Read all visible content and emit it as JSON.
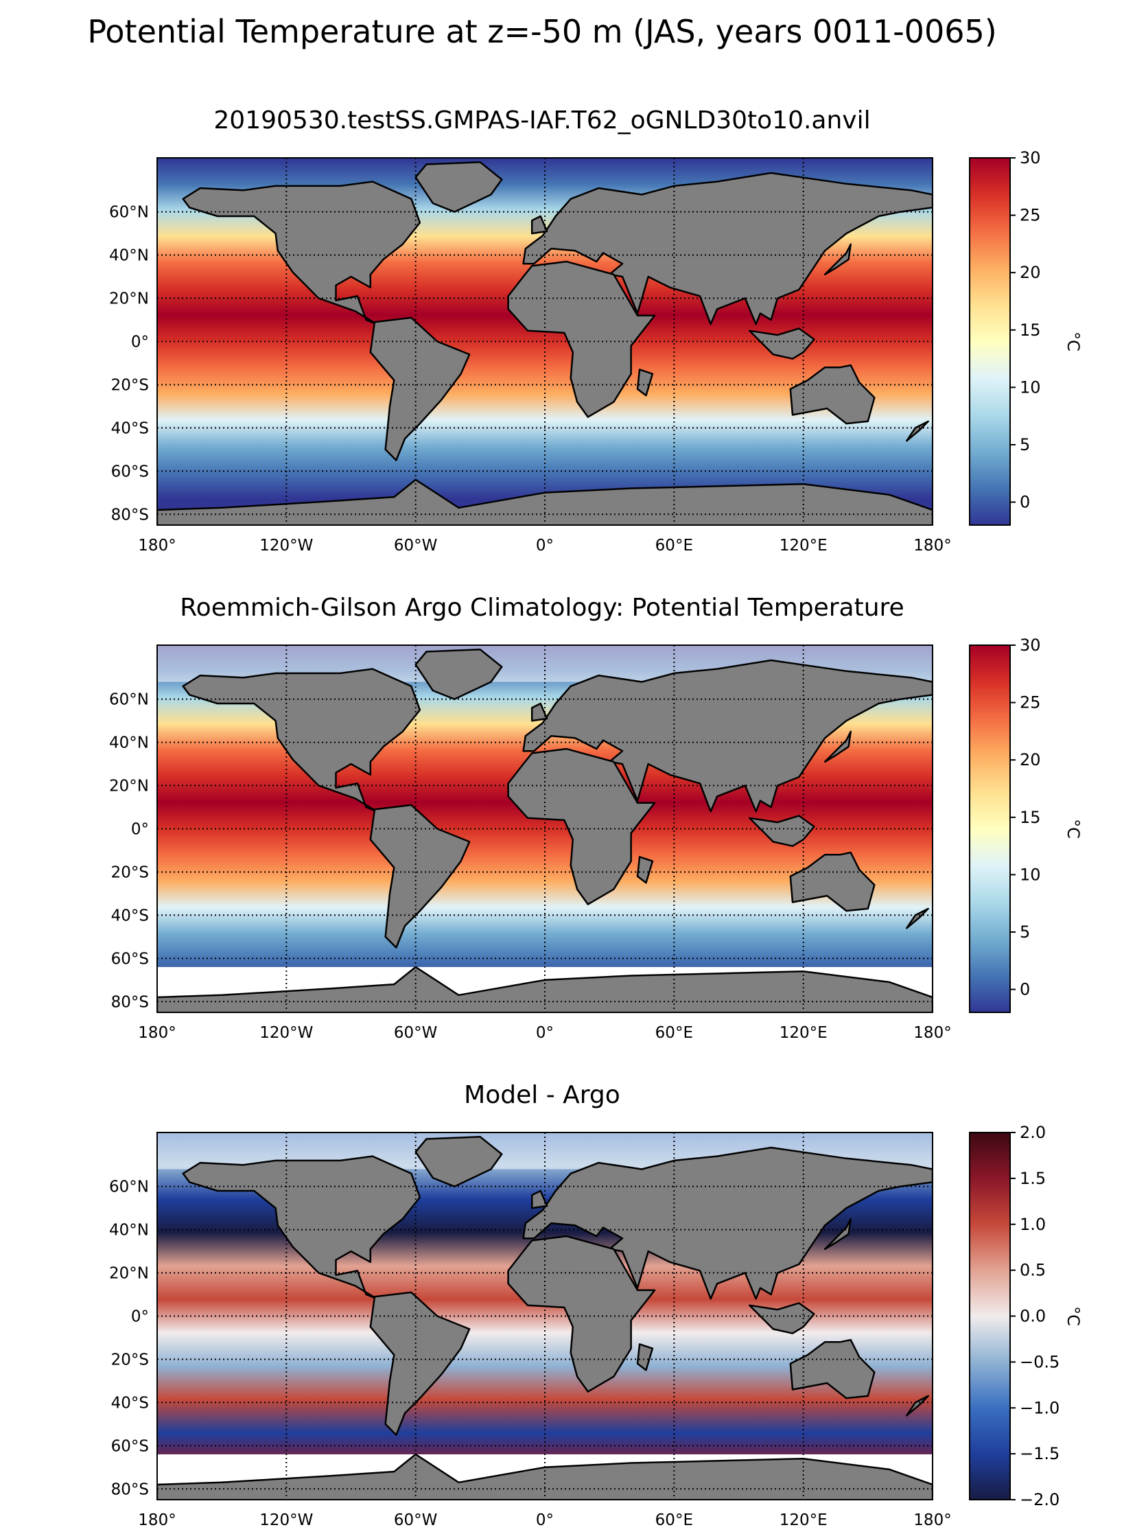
{
  "figure": {
    "title": "Potential Temperature at z=-50 m (JAS, years 0011-0065)"
  },
  "axes": {
    "lon_ticks": [
      "180°",
      "120°W",
      "60°W",
      "0°",
      "60°E",
      "120°E",
      "180°"
    ],
    "lat_ticks": [
      "60°N",
      "40°N",
      "20°N",
      "0°",
      "20°S",
      "40°S",
      "60°S",
      "80°S"
    ]
  },
  "panels": [
    {
      "title": "20190530.testSS.GMPAS-IAF.T62_oGNLD30to10.anvil",
      "colorbar": {
        "label": "°C",
        "ticks": [
          "30",
          "25",
          "20",
          "15",
          "10",
          "5",
          "0"
        ],
        "colormap": "RdYlBu_r",
        "colors": [
          "#313695",
          "#4575b4",
          "#74add1",
          "#abd9e9",
          "#e0f3f8",
          "#ffffbf",
          "#fee090",
          "#fdae61",
          "#f46d43",
          "#d73027",
          "#a50026"
        ]
      }
    },
    {
      "title": "Roemmich-Gilson Argo Climatology: Potential Temperature",
      "colorbar": {
        "label": "°C",
        "ticks": [
          "30",
          "25",
          "20",
          "15",
          "10",
          "5",
          "0"
        ],
        "colormap": "RdYlBu_r",
        "colors": [
          "#313695",
          "#4575b4",
          "#74add1",
          "#abd9e9",
          "#e0f3f8",
          "#ffffbf",
          "#fee090",
          "#fdae61",
          "#f46d43",
          "#d73027",
          "#a50026"
        ]
      }
    },
    {
      "title": "Model - Argo",
      "colorbar": {
        "label": "°C",
        "ticks": [
          "2.0",
          "1.5",
          "1.0",
          "0.5",
          "0.0",
          "−0.5",
          "−1.0",
          "−1.5",
          "−2.0"
        ],
        "colormap": "balance",
        "colors": [
          "#181c43",
          "#1f3f9d",
          "#3a6fc0",
          "#8fb2d4",
          "#f1ecec",
          "#e2a292",
          "#c6493a",
          "#8a1729",
          "#3c0912"
        ]
      }
    }
  ],
  "colors": {
    "land": "#808080",
    "missing": "#ffffff",
    "coast": "#000000"
  }
}
